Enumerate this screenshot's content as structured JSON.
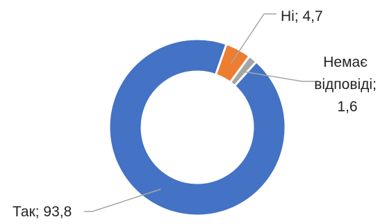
{
  "chart_data": {
    "type": "pie",
    "variant": "donut",
    "slices": [
      {
        "label": "Так",
        "value": 93.8,
        "color": "#4472C4"
      },
      {
        "label": "Ні",
        "value": 4.7,
        "color": "#ED7D31"
      },
      {
        "label": "Немає відповіді",
        "value": 1.6,
        "color": "#A5A5A5"
      }
    ],
    "data_labels": [
      {
        "lines": [
          "Так; 93,8"
        ]
      },
      {
        "lines": [
          "Ні; 4,7"
        ]
      },
      {
        "lines": [
          "Немає",
          "відповіді;",
          "1,6"
        ]
      }
    ],
    "legend": "none"
  }
}
